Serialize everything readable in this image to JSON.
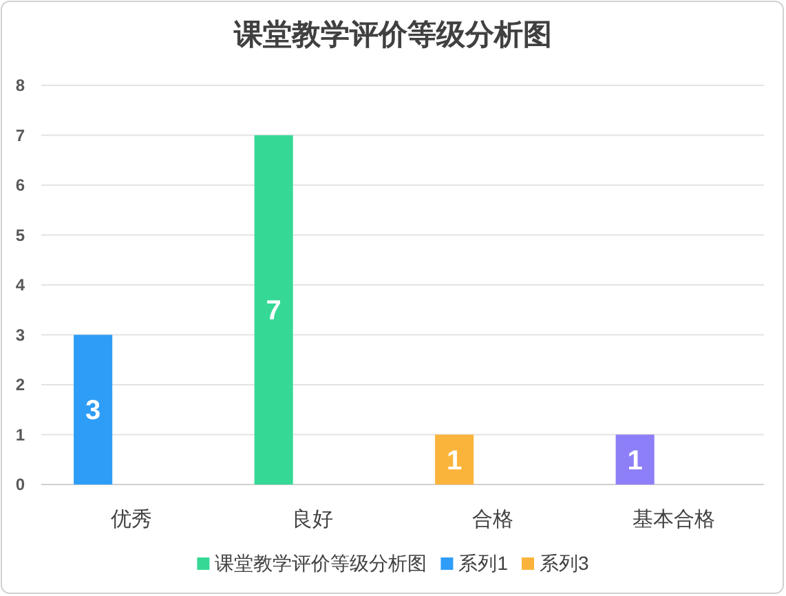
{
  "chart_data": {
    "type": "bar",
    "title": "课堂教学评价等级分析图",
    "categories": [
      "优秀",
      "良好",
      "合格",
      "基本合格"
    ],
    "series": [
      {
        "name": "课堂教学评价等级分析图",
        "color": "#36d895",
        "colors": [
          "#2e9df7",
          "#36d895",
          "#fbb43b",
          "#8d7ff7"
        ],
        "values": [
          3,
          7,
          1,
          1
        ]
      },
      {
        "name": "系列1",
        "color": "#2e9df7",
        "values": [
          null,
          null,
          null,
          null
        ]
      },
      {
        "name": "系列3",
        "color": "#fbb43b",
        "values": [
          null,
          null,
          null,
          null
        ]
      }
    ],
    "ylim": [
      0,
      8
    ],
    "yticks": [
      0,
      1,
      2,
      3,
      4,
      5,
      6,
      7,
      8
    ],
    "grid": "y",
    "legend": "bottom",
    "data_labels": true
  }
}
